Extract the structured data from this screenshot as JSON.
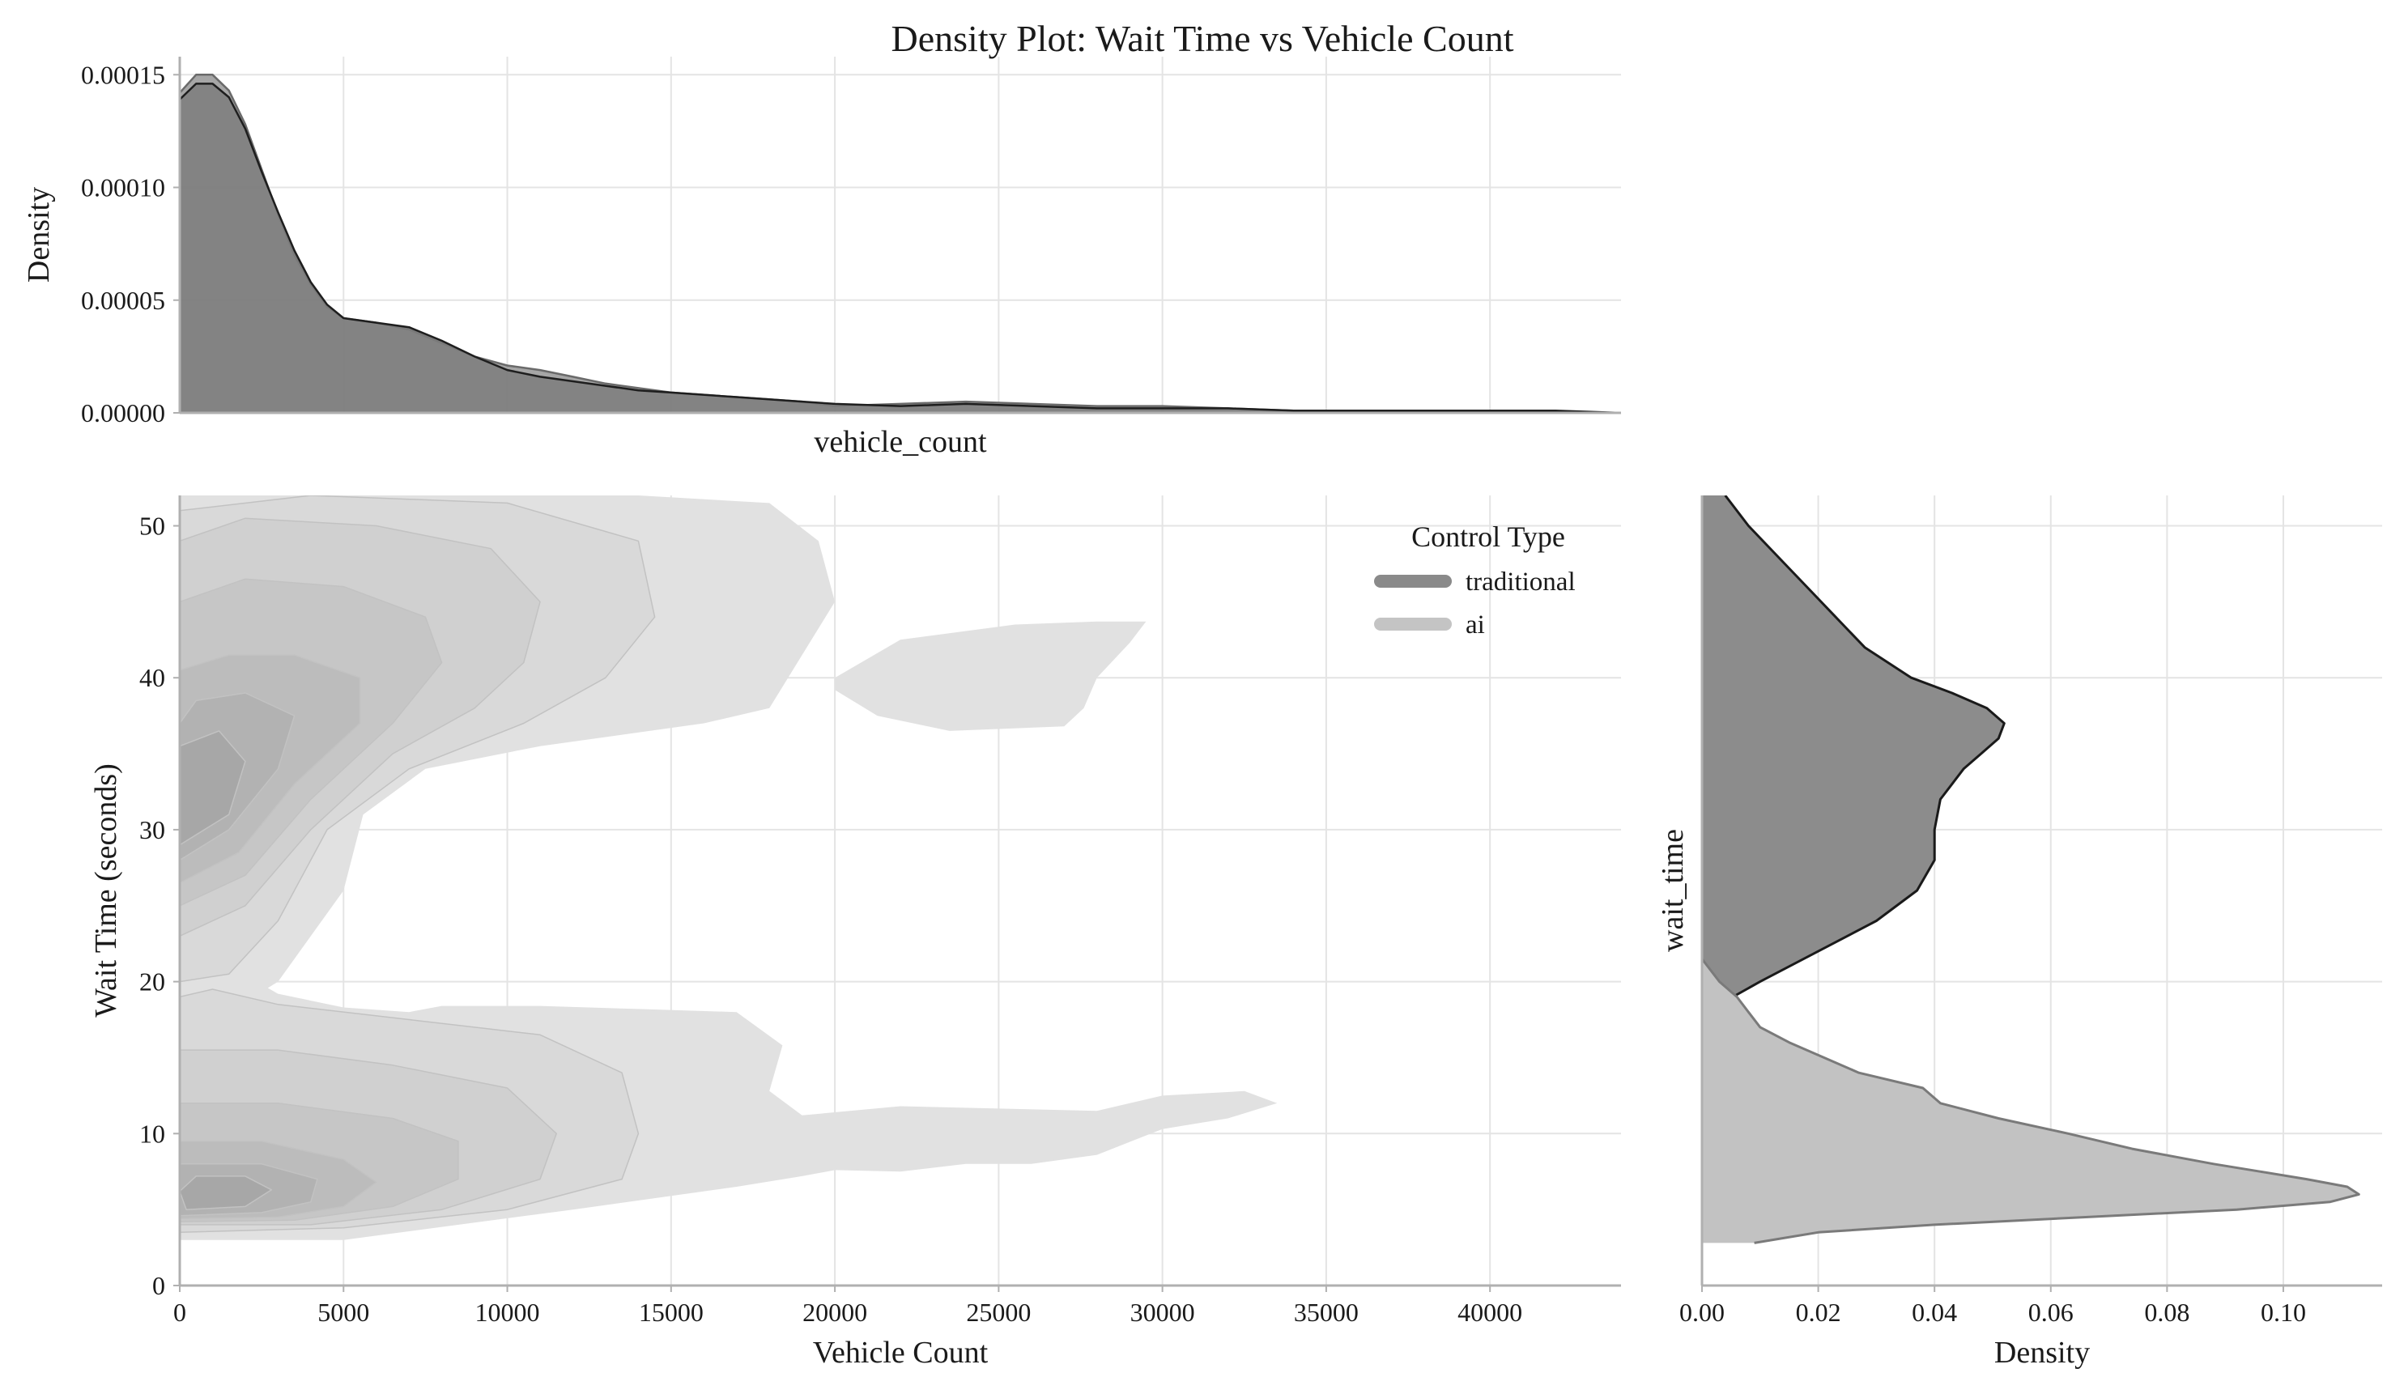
{
  "chart_data": {
    "type": "area",
    "title": "Density Plot: Wait Time vs Vehicle Count",
    "panels": {
      "top_marginal": {
        "type": "area",
        "xlabel": "vehicle_count",
        "ylabel": "Density",
        "xlim": [
          0,
          44000
        ],
        "ylim": [
          0,
          0.000158
        ],
        "yticks": [
          0,
          5e-05,
          0.0001,
          0.00015
        ],
        "ytick_labels": [
          "0.00000",
          "0.00005",
          "0.00010",
          "0.00015"
        ],
        "x": [
          0,
          500,
          1000,
          1500,
          2000,
          2500,
          3000,
          3500,
          4000,
          4500,
          5000,
          6000,
          7000,
          8000,
          9000,
          10000,
          11000,
          12000,
          13000,
          14000,
          15000,
          17000,
          19000,
          20000,
          22000,
          24000,
          26000,
          28000,
          30000,
          32000,
          34000,
          36000,
          38000,
          40000,
          42000,
          44000
        ],
        "series": [
          {
            "name": "traditional",
            "color": "#6e6e6e",
            "values": [
              0.000139,
              0.000146,
              0.000146,
              0.00014,
              0.000126,
              0.000107,
              8.9e-05,
              7.2e-05,
              5.8e-05,
              4.8e-05,
              4.2e-05,
              4e-05,
              3.8e-05,
              3.2e-05,
              2.5e-05,
              1.9e-05,
              1.6e-05,
              1.4e-05,
              1.2e-05,
              1e-05,
              9e-06,
              7e-06,
              5e-06,
              4e-06,
              3e-06,
              4e-06,
              3e-06,
              2e-06,
              2e-06,
              2e-06,
              1e-06,
              1e-06,
              1e-06,
              1e-06,
              1e-06,
              0.0
            ]
          },
          {
            "name": "ai",
            "color": "#a9a9a9",
            "values": [
              0.000142,
              0.00015,
              0.00015,
              0.000143,
              0.000128,
              0.000108,
              8.8e-05,
              7e-05,
              5.7e-05,
              4.7e-05,
              4.2e-05,
              4e-05,
              3.7e-05,
              3.1e-05,
              2.5e-05,
              2.1e-05,
              1.9e-05,
              1.6e-05,
              1.3e-05,
              1.1e-05,
              9e-06,
              7e-06,
              5e-06,
              3e-06,
              4e-06,
              5e-06,
              4e-06,
              3e-06,
              3e-06,
              2e-06,
              1e-06,
              1e-06,
              1e-06,
              1e-06,
              0.0,
              0.0
            ]
          }
        ]
      },
      "joint": {
        "type": "kde-contour",
        "xlabel": "Vehicle Count",
        "ylabel": "Wait Time (seconds)",
        "xlim": [
          0,
          44000
        ],
        "ylim": [
          0,
          52
        ],
        "xticks": [
          0,
          5000,
          10000,
          15000,
          20000,
          25000,
          30000,
          35000,
          40000
        ],
        "yticks": [
          0,
          10,
          20,
          30,
          40,
          50
        ],
        "legend": {
          "title": "Control Type",
          "entries": [
            {
              "name": "traditional",
              "color": "#8a8a8a"
            },
            {
              "name": "ai",
              "color": "#c4c4c4"
            }
          ],
          "placement": "top-right"
        },
        "regions": [
          {
            "series": "traditional",
            "level": 0,
            "points": [
              [
                0,
                18
              ],
              [
                1500,
                18
              ],
              [
                3000,
                20
              ],
              [
                5000,
                26
              ],
              [
                5600,
                31
              ],
              [
                7500,
                34
              ],
              [
                11000,
                35.5
              ],
              [
                16000,
                37
              ],
              [
                18000,
                38
              ],
              [
                19000,
                41.5
              ],
              [
                20000,
                45
              ],
              [
                19500,
                49
              ],
              [
                18000,
                51.5
              ],
              [
                14000,
                52
              ],
              [
                0,
                52
              ]
            ]
          },
          {
            "series": "traditional",
            "level": 0,
            "points": [
              [
                20000,
                40
              ],
              [
                22000,
                42.5
              ],
              [
                25500,
                43.5
              ],
              [
                28000,
                43.7
              ],
              [
                29500,
                43.7
              ],
              [
                29000,
                42.3
              ],
              [
                28000,
                40
              ],
              [
                27600,
                38
              ],
              [
                27000,
                36.8
              ],
              [
                23500,
                36.5
              ],
              [
                21300,
                37.5
              ],
              [
                20000,
                39.2
              ]
            ]
          },
          {
            "series": "ai",
            "level": 0,
            "points": [
              [
                0,
                3
              ],
              [
                5000,
                3
              ],
              [
                12000,
                5
              ],
              [
                17000,
                6.5
              ],
              [
                19000,
                7.2
              ],
              [
                20000,
                7.6
              ],
              [
                22000,
                7.5
              ],
              [
                24000,
                8
              ],
              [
                26000,
                8
              ],
              [
                28000,
                8.6
              ],
              [
                30000,
                10.3
              ],
              [
                32000,
                11
              ],
              [
                33500,
                12
              ],
              [
                32500,
                12.8
              ],
              [
                30000,
                12.5
              ],
              [
                28000,
                11.5
              ],
              [
                22000,
                11.8
              ],
              [
                19000,
                11.2
              ],
              [
                18000,
                12.8
              ],
              [
                18400,
                15.8
              ],
              [
                17000,
                18
              ],
              [
                14000,
                18.2
              ],
              [
                11000,
                18.4
              ],
              [
                8000,
                18.4
              ],
              [
                7000,
                18
              ],
              [
                5000,
                18.3
              ],
              [
                3000,
                19.2
              ],
              [
                1700,
                20.8
              ],
              [
                0,
                21
              ]
            ]
          },
          {
            "series": "traditional",
            "level": 1,
            "points": [
              [
                0,
                20
              ],
              [
                1500,
                20.5
              ],
              [
                3000,
                24
              ],
              [
                4500,
                30
              ],
              [
                7000,
                34
              ],
              [
                10500,
                37
              ],
              [
                13000,
                40
              ],
              [
                14500,
                44
              ],
              [
                14000,
                49
              ],
              [
                10000,
                51.5
              ],
              [
                4000,
                52
              ],
              [
                0,
                51
              ]
            ]
          },
          {
            "series": "traditional",
            "level": 2,
            "points": [
              [
                0,
                23
              ],
              [
                2000,
                25
              ],
              [
                4000,
                30
              ],
              [
                6500,
                35
              ],
              [
                9000,
                38
              ],
              [
                10500,
                41
              ],
              [
                11000,
                45
              ],
              [
                9500,
                48.5
              ],
              [
                6000,
                50
              ],
              [
                2000,
                50.5
              ],
              [
                0,
                49
              ]
            ]
          },
          {
            "series": "traditional",
            "level": 3,
            "points": [
              [
                0,
                25
              ],
              [
                2000,
                27
              ],
              [
                4000,
                32
              ],
              [
                6500,
                37
              ],
              [
                8000,
                41
              ],
              [
                7500,
                44
              ],
              [
                5000,
                46
              ],
              [
                2000,
                46.5
              ],
              [
                0,
                45
              ]
            ]
          },
          {
            "series": "traditional",
            "level": 4,
            "points": [
              [
                0,
                26.5
              ],
              [
                1800,
                28.5
              ],
              [
                3500,
                33
              ],
              [
                5500,
                37
              ],
              [
                5500,
                40
              ],
              [
                3500,
                41.5
              ],
              [
                1500,
                41.5
              ],
              [
                0,
                40.5
              ]
            ]
          },
          {
            "series": "traditional",
            "level": 5,
            "points": [
              [
                0,
                28
              ],
              [
                1500,
                30
              ],
              [
                3000,
                34
              ],
              [
                3500,
                37.5
              ],
              [
                2000,
                39
              ],
              [
                500,
                38.5
              ],
              [
                0,
                37
              ]
            ]
          },
          {
            "series": "traditional",
            "level": 6,
            "points": [
              [
                0,
                29
              ],
              [
                1500,
                31
              ],
              [
                2000,
                34.5
              ],
              [
                1200,
                36.5
              ],
              [
                0,
                35.5
              ]
            ]
          },
          {
            "series": "ai",
            "level": 1,
            "points": [
              [
                0,
                3.5
              ],
              [
                5000,
                3.8
              ],
              [
                10000,
                5
              ],
              [
                13500,
                7
              ],
              [
                14000,
                10
              ],
              [
                13500,
                14
              ],
              [
                11000,
                16.5
              ],
              [
                7000,
                17.5
              ],
              [
                3000,
                18.5
              ],
              [
                1000,
                19.5
              ],
              [
                0,
                19
              ]
            ]
          },
          {
            "series": "ai",
            "level": 2,
            "points": [
              [
                0,
                4
              ],
              [
                4000,
                4
              ],
              [
                8000,
                5
              ],
              [
                11000,
                7
              ],
              [
                11500,
                10
              ],
              [
                10000,
                13
              ],
              [
                6500,
                14.5
              ],
              [
                3000,
                15.5
              ],
              [
                0,
                15.5
              ]
            ]
          },
          {
            "series": "ai",
            "level": 3,
            "points": [
              [
                0,
                4.2
              ],
              [
                3500,
                4.3
              ],
              [
                6500,
                5.2
              ],
              [
                8500,
                7
              ],
              [
                8500,
                9.5
              ],
              [
                6500,
                11
              ],
              [
                3000,
                12
              ],
              [
                0,
                12
              ]
            ]
          },
          {
            "series": "ai",
            "level": 4,
            "points": [
              [
                0,
                4.4
              ],
              [
                3000,
                4.5
              ],
              [
                5000,
                5.2
              ],
              [
                6000,
                6.8
              ],
              [
                5000,
                8.3
              ],
              [
                2500,
                9.5
              ],
              [
                0,
                9.5
              ]
            ]
          },
          {
            "series": "ai",
            "level": 5,
            "points": [
              [
                0,
                4.6
              ],
              [
                2500,
                4.8
              ],
              [
                4000,
                5.5
              ],
              [
                4200,
                7
              ],
              [
                2500,
                8
              ],
              [
                0,
                8
              ]
            ]
          },
          {
            "series": "ai",
            "level": 6,
            "points": [
              [
                200,
                5
              ],
              [
                2000,
                5.2
              ],
              [
                2800,
                6.3
              ],
              [
                2000,
                7.2
              ],
              [
                500,
                7.2
              ],
              [
                0,
                6.2
              ]
            ]
          }
        ]
      },
      "right_marginal": {
        "type": "area",
        "xlabel": "Density",
        "ylabel": "wait_time",
        "xlim": [
          0,
          0.117
        ],
        "ylim": [
          0,
          52
        ],
        "xticks": [
          0,
          0.02,
          0.04,
          0.06,
          0.08,
          0.1
        ],
        "xtick_labels": [
          "0.00",
          "0.02",
          "0.04",
          "0.06",
          "0.08",
          "0.10"
        ],
        "series": [
          {
            "name": "traditional",
            "color": "#6e6e6e",
            "y": [
              17.5,
              18.5,
              20,
              22,
              24,
              26,
              28,
              30,
              32,
              34,
              35,
              36,
              37,
              38,
              39,
              40,
              42,
              44,
              46,
              48,
              50,
              51.5,
              52
            ],
            "values": [
              0.001,
              0.003,
              0.01,
              0.02,
              0.03,
              0.037,
              0.04,
              0.04,
              0.041,
              0.045,
              0.048,
              0.051,
              0.052,
              0.049,
              0.043,
              0.036,
              0.028,
              0.023,
              0.018,
              0.013,
              0.008,
              0.005,
              0.004
            ]
          },
          {
            "name": "ai",
            "color": "#a9a9a9",
            "y": [
              2.8,
              3.5,
              4,
              4.5,
              5,
              5.5,
              6,
              6.5,
              7,
              7.5,
              8,
              9,
              10,
              11,
              12,
              13,
              14,
              15,
              16,
              17,
              18,
              19,
              20,
              21.5
            ],
            "values": [
              0.009,
              0.02,
              0.04,
              0.066,
              0.092,
              0.108,
              0.113,
              0.111,
              0.104,
              0.096,
              0.088,
              0.074,
              0.063,
              0.051,
              0.041,
              0.038,
              0.027,
              0.021,
              0.015,
              0.01,
              0.008,
              0.006,
              0.003,
              0.0
            ]
          }
        ]
      }
    }
  }
}
